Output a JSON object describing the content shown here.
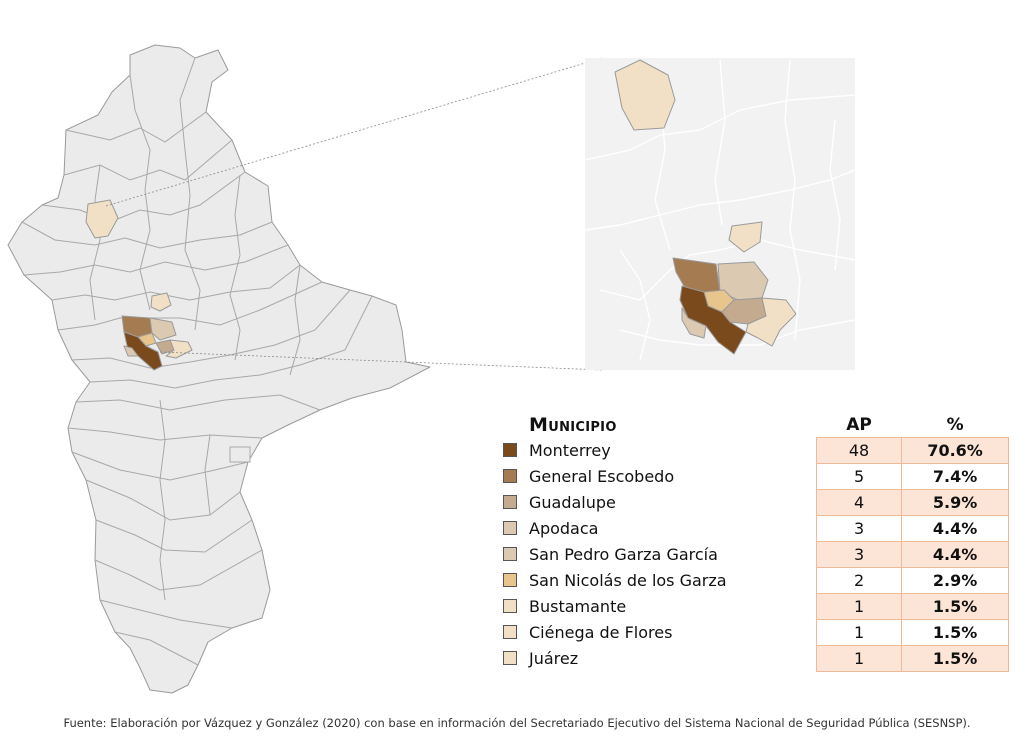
{
  "colors": {
    "background_municipality": "#ebebeb",
    "border": "#9a9a9a",
    "inset_background": "#f2f2f2"
  },
  "legend": {
    "header_municipio": "Municipio",
    "header_ap": "AP",
    "header_pct": "%",
    "rows": [
      {
        "name": "Monterrey",
        "ap": "48",
        "pct": "70.6%",
        "color": "#7b4a1c"
      },
      {
        "name": "General Escobedo",
        "ap": "5",
        "pct": "7.4%",
        "color": "#a57b52"
      },
      {
        "name": "Guadalupe",
        "ap": "4",
        "pct": "5.9%",
        "color": "#c4aa8e"
      },
      {
        "name": "Apodaca",
        "ap": "3",
        "pct": "4.4%",
        "color": "#dbc9b2"
      },
      {
        "name": "San Pedro Garza García",
        "ap": "3",
        "pct": "4.4%",
        "color": "#dbc9b2"
      },
      {
        "name": "San Nicolás de los Garza",
        "ap": "2",
        "pct": "2.9%",
        "color": "#e9c58e"
      },
      {
        "name": "Bustamante",
        "ap": "1",
        "pct": "1.5%",
        "color": "#f1e0c6"
      },
      {
        "name": "Ciénega de Flores",
        "ap": "1",
        "pct": "1.5%",
        "color": "#f1e0c6"
      },
      {
        "name": "Juárez",
        "ap": "1",
        "pct": "1.5%",
        "color": "#f1e0c6"
      }
    ]
  },
  "source_note": "Fuente: Elaboración por Vázquez y González (2020) con base en información del Secretariado Ejecutivo del Sistema Nacional de Seguridad Pública (SESNSP)."
}
